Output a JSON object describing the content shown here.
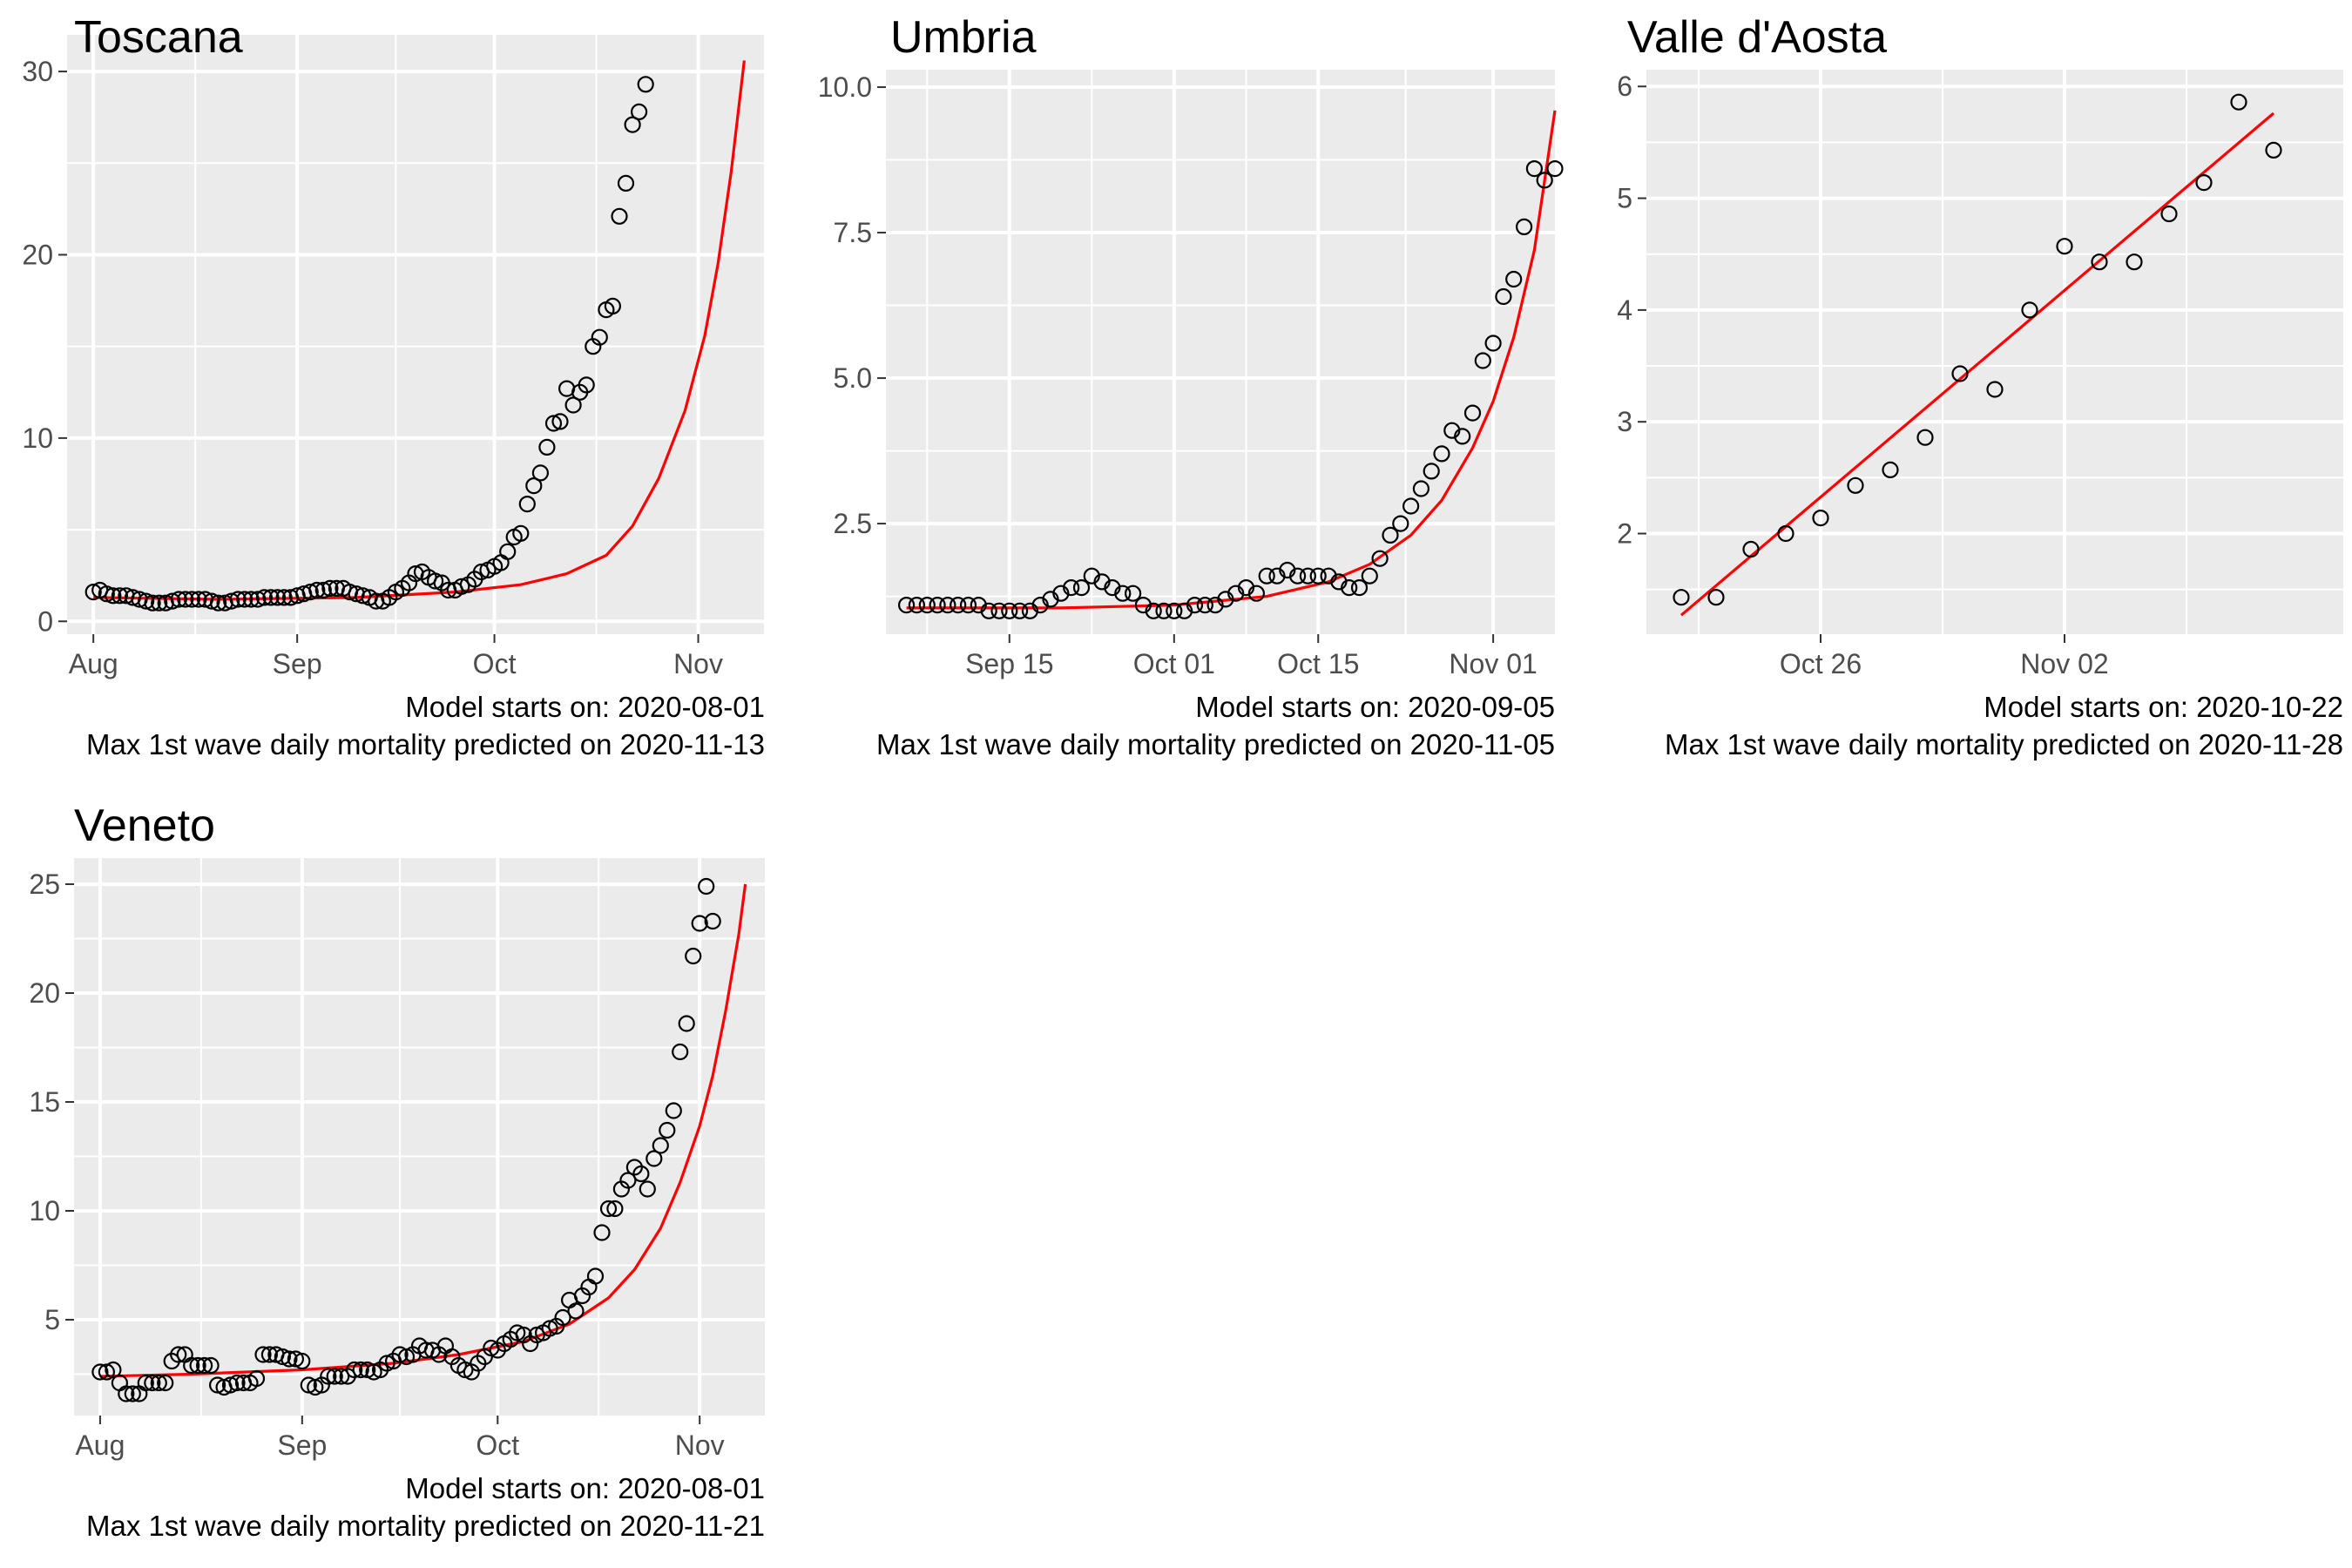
{
  "chart_data": [
    {
      "type": "scatter",
      "title": "Toscana",
      "xlabel": "",
      "ylabel": "",
      "x_range": [
        "2020-07-28",
        "2020-11-11"
      ],
      "ylim": [
        -0.7,
        32
      ],
      "x_ticks": [
        {
          "date": "2020-08-01",
          "label": "Aug"
        },
        {
          "date": "2020-09-01",
          "label": "Sep"
        },
        {
          "date": "2020-10-01",
          "label": "Oct"
        },
        {
          "date": "2020-11-01",
          "label": "Nov"
        }
      ],
      "y_ticks": [
        0,
        10,
        20,
        30
      ],
      "y_tick_labels": [
        "0",
        "10",
        "20",
        "30"
      ],
      "grid": true,
      "fit_color": "#ff0000",
      "points_start": "2020-08-01",
      "points": [
        1.6,
        1.7,
        1.5,
        1.4,
        1.4,
        1.4,
        1.3,
        1.2,
        1.1,
        1.0,
        1.0,
        1.0,
        1.1,
        1.2,
        1.2,
        1.2,
        1.2,
        1.2,
        1.1,
        1.0,
        1.0,
        1.1,
        1.2,
        1.2,
        1.2,
        1.2,
        1.3,
        1.3,
        1.3,
        1.3,
        1.3,
        1.4,
        1.5,
        1.6,
        1.7,
        1.7,
        1.8,
        1.8,
        1.8,
        1.6,
        1.5,
        1.4,
        1.3,
        1.1,
        1.1,
        1.3,
        1.6,
        1.8,
        2.1,
        2.6,
        2.7,
        2.4,
        2.2,
        2.1,
        1.7,
        1.7,
        1.9,
        2.0,
        2.3,
        2.7,
        2.8,
        3.0,
        3.2,
        3.8,
        4.6,
        4.8,
        6.4,
        7.4,
        8.1,
        9.5,
        10.8,
        10.9,
        12.7,
        11.8,
        12.5,
        12.9,
        15.0,
        15.5,
        17.0,
        17.2,
        22.1,
        23.9,
        27.1,
        27.8,
        29.3
      ],
      "fit_curve": [
        {
          "x": "2020-08-01",
          "y": 1.3
        },
        {
          "x": "2020-08-20",
          "y": 1.2
        },
        {
          "x": "2020-09-10",
          "y": 1.3
        },
        {
          "x": "2020-09-25",
          "y": 1.6
        },
        {
          "x": "2020-10-05",
          "y": 2.0
        },
        {
          "x": "2020-10-12",
          "y": 2.6
        },
        {
          "x": "2020-10-18",
          "y": 3.6
        },
        {
          "x": "2020-10-22",
          "y": 5.2
        },
        {
          "x": "2020-10-26",
          "y": 7.8
        },
        {
          "x": "2020-10-30",
          "y": 11.5
        },
        {
          "x": "2020-11-02",
          "y": 15.6
        },
        {
          "x": "2020-11-04",
          "y": 19.5
        },
        {
          "x": "2020-11-06",
          "y": 24.5
        },
        {
          "x": "2020-11-08",
          "y": 30.6
        }
      ],
      "caption_lines": [
        "Model starts on: 2020-08-01",
        "Max 1st wave daily mortality predicted on 2020-11-13"
      ]
    },
    {
      "type": "scatter",
      "title": "Umbria",
      "xlabel": "",
      "ylabel": "",
      "x_range": [
        "2020-09-03",
        "2020-11-07"
      ],
      "ylim": [
        0.6,
        10.3
      ],
      "x_ticks": [
        {
          "date": "2020-09-15",
          "label": "Sep 15"
        },
        {
          "date": "2020-10-01",
          "label": "Oct 01"
        },
        {
          "date": "2020-10-15",
          "label": "Oct 15"
        },
        {
          "date": "2020-11-01",
          "label": "Nov 01"
        }
      ],
      "y_ticks": [
        2.5,
        5.0,
        7.5,
        10.0
      ],
      "y_tick_labels": [
        "2.5",
        "5.0",
        "7.5",
        "10.0"
      ],
      "grid": true,
      "fit_color": "#ff0000",
      "points_start": "2020-09-05",
      "points": [
        1.1,
        1.1,
        1.1,
        1.1,
        1.1,
        1.1,
        1.1,
        1.1,
        1.0,
        1.0,
        1.0,
        1.0,
        1.0,
        1.1,
        1.2,
        1.3,
        1.4,
        1.4,
        1.6,
        1.5,
        1.4,
        1.3,
        1.3,
        1.1,
        1.0,
        1.0,
        1.0,
        1.0,
        1.1,
        1.1,
        1.1,
        1.2,
        1.3,
        1.4,
        1.3,
        1.6,
        1.6,
        1.7,
        1.6,
        1.6,
        1.6,
        1.6,
        1.5,
        1.4,
        1.4,
        1.6,
        1.9,
        2.3,
        2.5,
        2.8,
        3.1,
        3.4,
        3.7,
        4.1,
        4.0,
        4.4,
        5.3,
        5.6,
        6.4,
        6.7,
        7.6,
        8.6,
        8.4,
        8.6
      ],
      "fit_curve": [
        {
          "x": "2020-09-05",
          "y": 1.05
        },
        {
          "x": "2020-09-20",
          "y": 1.05
        },
        {
          "x": "2020-10-01",
          "y": 1.1
        },
        {
          "x": "2020-10-10",
          "y": 1.25
        },
        {
          "x": "2020-10-16",
          "y": 1.5
        },
        {
          "x": "2020-10-20",
          "y": 1.8
        },
        {
          "x": "2020-10-24",
          "y": 2.3
        },
        {
          "x": "2020-10-27",
          "y": 2.9
        },
        {
          "x": "2020-10-30",
          "y": 3.8
        },
        {
          "x": "2020-11-01",
          "y": 4.6
        },
        {
          "x": "2020-11-03",
          "y": 5.7
        },
        {
          "x": "2020-11-05",
          "y": 7.2
        },
        {
          "x": "2020-11-07",
          "y": 9.6
        }
      ],
      "caption_lines": [
        "Model starts on: 2020-09-05",
        "Max 1st wave daily mortality predicted on 2020-11-05"
      ]
    },
    {
      "type": "scatter",
      "title": "Valle d'Aosta",
      "xlabel": "",
      "ylabel": "",
      "x_range": [
        "2020-10-21",
        "2020-11-10"
      ],
      "ylim": [
        1.1,
        6.15
      ],
      "x_ticks": [
        {
          "date": "2020-10-26",
          "label": "Oct 26"
        },
        {
          "date": "2020-11-02",
          "label": "Nov 02"
        }
      ],
      "y_ticks": [
        2,
        3,
        4,
        5,
        6
      ],
      "y_tick_labels": [
        "2",
        "3",
        "4",
        "5",
        "6"
      ],
      "grid": true,
      "fit_color": "#ff0000",
      "points_start": "2020-10-22",
      "points": [
        1.43,
        1.43,
        1.86,
        2.0,
        2.14,
        2.43,
        2.57,
        2.86,
        3.43,
        3.29,
        4.0,
        4.57,
        4.43,
        4.43,
        4.86,
        5.14,
        5.86,
        5.43
      ],
      "fit_curve": [
        {
          "x": "2020-10-22",
          "y": 1.27
        },
        {
          "x": "2020-11-08",
          "y": 5.76
        }
      ],
      "caption_lines": [
        "Model starts on: 2020-10-22",
        "Max 1st wave daily mortality predicted on 2020-11-28"
      ]
    },
    {
      "type": "scatter",
      "title": "Veneto",
      "xlabel": "",
      "ylabel": "",
      "x_range": [
        "2020-07-28",
        "2020-11-11"
      ],
      "ylim": [
        0.6,
        26.2
      ],
      "x_ticks": [
        {
          "date": "2020-08-01",
          "label": "Aug"
        },
        {
          "date": "2020-09-01",
          "label": "Sep"
        },
        {
          "date": "2020-10-01",
          "label": "Oct"
        },
        {
          "date": "2020-11-01",
          "label": "Nov"
        }
      ],
      "y_ticks": [
        5,
        10,
        15,
        20,
        25
      ],
      "y_tick_labels": [
        "5",
        "10",
        "15",
        "20",
        "25"
      ],
      "grid": true,
      "fit_color": "#ff0000",
      "points_start": "2020-08-01",
      "points": [
        2.6,
        2.6,
        2.7,
        2.1,
        1.6,
        1.6,
        1.6,
        2.1,
        2.1,
        2.1,
        2.1,
        3.1,
        3.4,
        3.4,
        2.9,
        2.9,
        2.9,
        2.9,
        2.0,
        1.9,
        2.0,
        2.1,
        2.1,
        2.1,
        2.3,
        3.4,
        3.4,
        3.4,
        3.3,
        3.2,
        3.2,
        3.1,
        2.0,
        1.9,
        2.0,
        2.4,
        2.4,
        2.4,
        2.4,
        2.7,
        2.7,
        2.7,
        2.6,
        2.7,
        3.0,
        3.1,
        3.4,
        3.3,
        3.4,
        3.8,
        3.6,
        3.6,
        3.4,
        3.8,
        3.3,
        2.9,
        2.7,
        2.6,
        3.0,
        3.3,
        3.7,
        3.6,
        3.9,
        4.1,
        4.4,
        4.3,
        3.9,
        4.3,
        4.4,
        4.6,
        4.7,
        5.1,
        5.9,
        5.4,
        6.1,
        6.5,
        7.0,
        9.0,
        10.1,
        10.1,
        11.0,
        11.4,
        12.0,
        11.7,
        11.0,
        12.4,
        13.0,
        13.7,
        14.6,
        17.3,
        18.6,
        21.7,
        23.2,
        24.9,
        23.3
      ],
      "fit_curve": [
        {
          "x": "2020-08-01",
          "y": 2.4
        },
        {
          "x": "2020-08-15",
          "y": 2.5
        },
        {
          "x": "2020-09-01",
          "y": 2.7
        },
        {
          "x": "2020-09-15",
          "y": 3.0
        },
        {
          "x": "2020-09-25",
          "y": 3.4
        },
        {
          "x": "2020-10-05",
          "y": 4.0
        },
        {
          "x": "2020-10-12",
          "y": 4.8
        },
        {
          "x": "2020-10-18",
          "y": 6.0
        },
        {
          "x": "2020-10-22",
          "y": 7.3
        },
        {
          "x": "2020-10-26",
          "y": 9.2
        },
        {
          "x": "2020-10-29",
          "y": 11.3
        },
        {
          "x": "2020-11-01",
          "y": 13.9
        },
        {
          "x": "2020-11-03",
          "y": 16.2
        },
        {
          "x": "2020-11-05",
          "y": 19.2
        },
        {
          "x": "2020-11-07",
          "y": 22.7
        },
        {
          "x": "2020-11-08",
          "y": 25.0
        }
      ],
      "caption_lines": [
        "Model starts on: 2020-08-01",
        "Max 1st wave daily mortality predicted on 2020-11-21"
      ]
    }
  ]
}
